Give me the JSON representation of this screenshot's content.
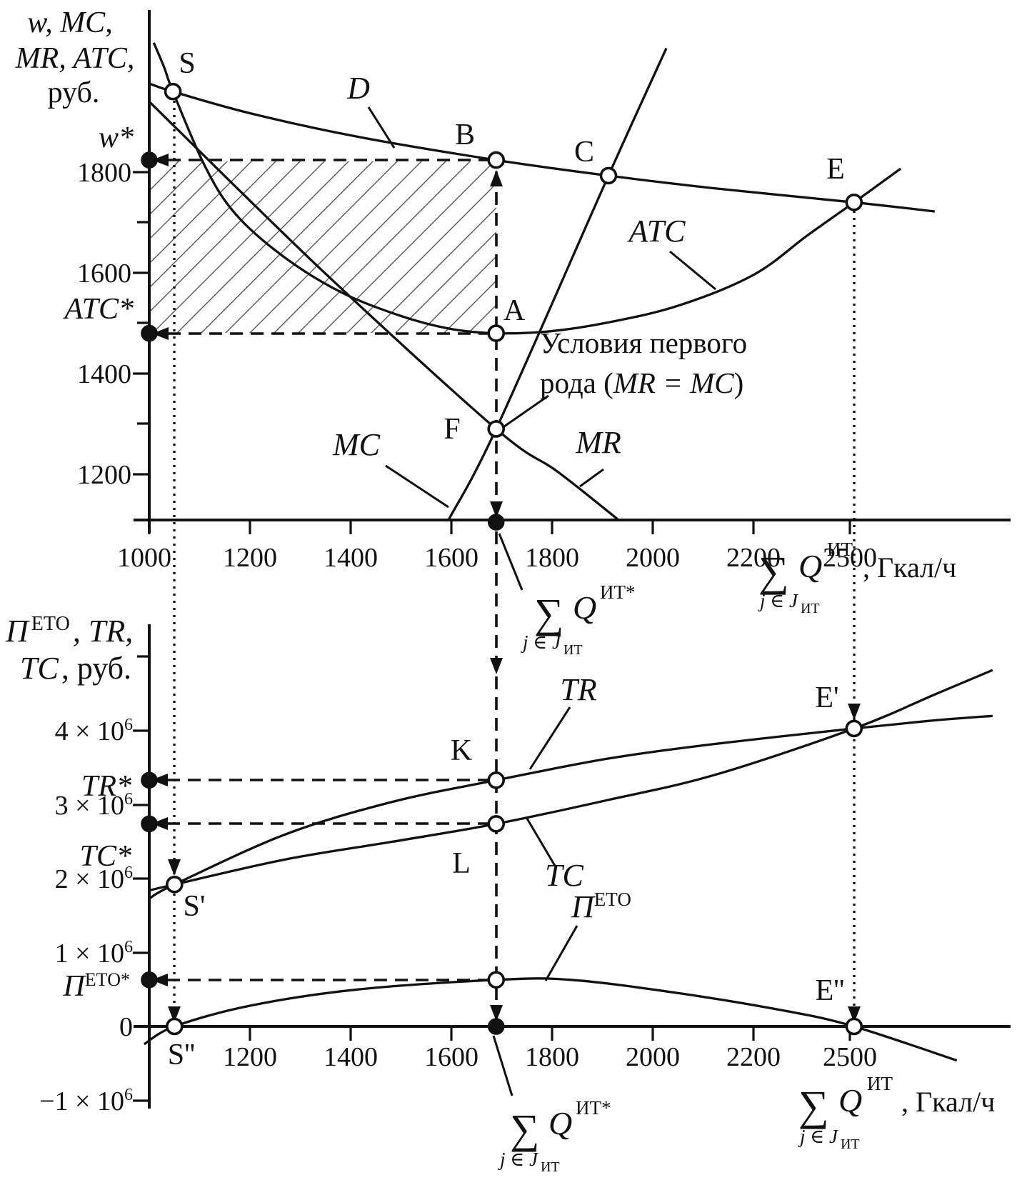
{
  "top_panel": {
    "y_axis_title": {
      "line1": "w, MC,",
      "line2": "MR, ATC,",
      "line3": "руб."
    },
    "y_tick_labels": {
      "t1800": "1800",
      "t1600": "1600",
      "t1400": "1400",
      "t1200": "1200"
    },
    "w_star": "w*",
    "atc_star": "ATC*",
    "x_tick_labels": {
      "t1000": "1000",
      "t1200": "1200",
      "t1400": "1400",
      "t1600": "1600",
      "t1800": "1800",
      "t2000": "2000",
      "t2200": "2200",
      "t2500": "2500"
    },
    "points": {
      "s": "S",
      "b": "B",
      "c": "C",
      "e": "E",
      "a": "A",
      "f": "F"
    },
    "curves": {
      "d": "D",
      "atc": "ATC",
      "mc": "MC",
      "mr": "MR"
    },
    "annotation": {
      "line1": "Условия первого",
      "line2_pre": "рода (",
      "line2_math": "MR = MC",
      "line2_post": ")"
    }
  },
  "bottom_panel": {
    "y_axis_title": {
      "pi": "П",
      "pi_sup": "ЕТО",
      "rest": ", TR,",
      "line2_tc": "TC",
      "line2_rest": ", руб."
    },
    "y_tick_labels": {
      "m4": "4 × 10",
      "m3": "3 × 10",
      "m2": "2 × 10",
      "m1": "1 × 10",
      "zero": "0",
      "m_neg1": "−1 × 10",
      "exp": "6"
    },
    "tr_star": "TR*",
    "tc_star": "TC*",
    "pi_star": "П",
    "pi_star_sup": "ЕТО*",
    "x_tick_labels": {
      "t1200": "1200",
      "t1400": "1400",
      "t1600": "1600",
      "t1800": "1800",
      "t2000": "2000",
      "t2200": "2200",
      "t2500": "2500"
    },
    "points": {
      "s1": "S'",
      "s2": "S''",
      "k": "K",
      "l": "L",
      "e1": "E'",
      "e2": "E''"
    },
    "curves": {
      "tr": "TR",
      "tc": "TC",
      "pi": "П",
      "pi_sup": "ЕТО"
    }
  },
  "axis_labels": {
    "sigma": "∑",
    "sub": "j ∈ J",
    "sub_small": "ИТ",
    "q": "Q",
    "sup_it": "ИТ",
    "sup_it_star": "ИТ*",
    "unit": ", Гкал/ч"
  },
  "chart_data": [
    {
      "type": "line",
      "panel": "top",
      "title": "",
      "xlabel": "∑ Q^ИТ, Гкал/ч",
      "ylabel": "w, MC, MR, ATC, руб.",
      "x_ticks": [
        1000,
        1200,
        1400,
        1600,
        1800,
        2000,
        2200,
        2500
      ],
      "y_ticks": [
        1200,
        1400,
        1600,
        1800
      ],
      "ylim": [
        1100,
        2120
      ],
      "grid": false,
      "legend": "inline-labels",
      "series": [
        {
          "name": "D",
          "points": [
            [
              1000,
              1976
            ],
            [
              1047,
              1960
            ],
            [
              1200,
              1917
            ],
            [
              1410,
              1871
            ],
            [
              1689,
              1824
            ],
            [
              1912,
              1793
            ],
            [
              2122,
              1768
            ],
            [
              2513,
              1740
            ],
            [
              2764,
              1722
            ]
          ]
        },
        {
          "name": "ATC",
          "points": [
            [
              1009,
              2057
            ],
            [
              1030,
              2007
            ],
            [
              1047,
              1960
            ],
            [
              1111,
              1811
            ],
            [
              1172,
              1716
            ],
            [
              1271,
              1629
            ],
            [
              1384,
              1560
            ],
            [
              1498,
              1515
            ],
            [
              1597,
              1489
            ],
            [
              1689,
              1480
            ],
            [
              1796,
              1484
            ],
            [
              1909,
              1501
            ],
            [
              2051,
              1535
            ],
            [
              2200,
              1596
            ],
            [
              2367,
              1674
            ],
            [
              2513,
              1740
            ],
            [
              2658,
              1807
            ]
          ]
        },
        {
          "name": "MC",
          "points": [
            [
              1594,
              1109
            ],
            [
              1689,
              1290
            ],
            [
              1912,
              1793
            ],
            [
              2027,
              2046
            ]
          ]
        },
        {
          "name": "MR",
          "points": [
            [
              1000,
              1940
            ],
            [
              1342,
              1606
            ],
            [
              1689,
              1290
            ],
            [
              1810,
              1206
            ],
            [
              1930,
              1111
            ]
          ]
        }
      ],
      "key_points": {
        "S": [
          1047,
          1960
        ],
        "B": [
          1689,
          1824
        ],
        "C": [
          1912,
          1793
        ],
        "E": [
          2513,
          1740
        ],
        "A": [
          1689,
          1480
        ],
        "F": [
          1689,
          1290
        ]
      },
      "markers": {
        "w_star": 1824,
        "atc_star": 1480
      },
      "q_markers": {
        "q_star": 1689,
        "q_e": 2513
      },
      "condition_note": "Условия первого рода (MR = MC)"
    },
    {
      "type": "line",
      "panel": "bottom",
      "title": "",
      "xlabel": "∑ Q^ИТ, Гкал/ч",
      "ylabel": "П^ЕТО, TR, TC, руб.",
      "x_ticks": [
        1200,
        1400,
        1600,
        1800,
        2000,
        2200,
        2500
      ],
      "y_ticks_e6": [
        -1,
        0,
        1,
        2,
        3,
        4
      ],
      "ylim_e6": [
        -1.2,
        5.4
      ],
      "grid": false,
      "legend": "inline-labels",
      "series_unit": "1e6 руб.",
      "series": [
        {
          "name": "TR",
          "points": [
            [
              1000,
              1.73
            ],
            [
              1050,
              1.92
            ],
            [
              1271,
              2.6
            ],
            [
              1484,
              3.04
            ],
            [
              1689,
              3.33
            ],
            [
              1909,
              3.62
            ],
            [
              2122,
              3.82
            ],
            [
              2513,
              4.03
            ],
            [
              2764,
              4.14
            ],
            [
              2944,
              4.2
            ]
          ]
        },
        {
          "name": "TC",
          "points": [
            [
              1000,
              1.84
            ],
            [
              1050,
              1.92
            ],
            [
              1271,
              2.26
            ],
            [
              1484,
              2.5
            ],
            [
              1689,
              2.74
            ],
            [
              1909,
              3.06
            ],
            [
              2122,
              3.4
            ],
            [
              2513,
              4.03
            ],
            [
              2764,
              4.49
            ],
            [
              2944,
              4.82
            ]
          ]
        },
        {
          "name": "П_ЕТО",
          "points": [
            [
              990,
              -0.24
            ],
            [
              1050,
              0.0
            ],
            [
              1200,
              0.28
            ],
            [
              1413,
              0.5
            ],
            [
              1689,
              0.63
            ],
            [
              1838,
              0.63
            ],
            [
              2051,
              0.45
            ],
            [
              2300,
              0.21
            ],
            [
              2513,
              0.0
            ],
            [
              2833,
              -0.46
            ]
          ]
        }
      ],
      "key_points": {
        "S1": [
          1050,
          1.92
        ],
        "K": [
          1689,
          3.33
        ],
        "L": [
          1689,
          2.74
        ],
        "E1": [
          2513,
          4.03
        ],
        "S2": [
          1050,
          0.0
        ],
        "E2": [
          2513,
          0.0
        ],
        "P_MAX": [
          1689,
          0.63
        ]
      },
      "markers": {
        "tr_star": 3.33,
        "tc_star": 2.74,
        "pi_star": 0.63
      },
      "q_markers": {
        "q_star": 1689,
        "q_e": 2513
      }
    }
  ]
}
